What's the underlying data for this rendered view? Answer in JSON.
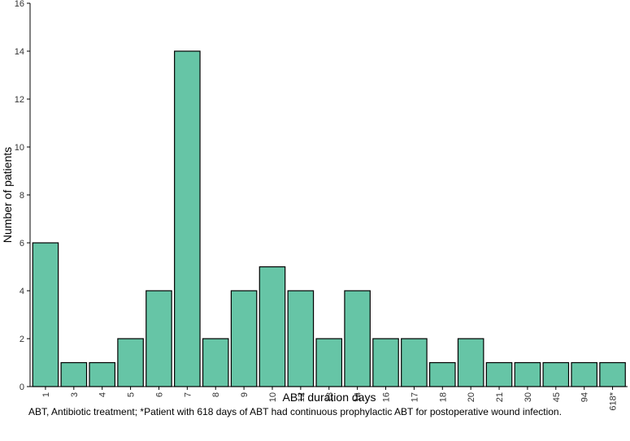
{
  "chart_data": {
    "type": "bar",
    "title": "",
    "xlabel": "ABT duration days",
    "ylabel": "Number of patients",
    "categories": [
      "1",
      "3",
      "4",
      "5",
      "6",
      "7",
      "8",
      "9",
      "10",
      "12",
      "13",
      "14",
      "16",
      "17",
      "18",
      "20",
      "21",
      "30",
      "45",
      "94",
      "618*"
    ],
    "values": [
      6,
      1,
      1,
      2,
      4,
      14,
      2,
      4,
      5,
      4,
      2,
      4,
      2,
      2,
      1,
      2,
      1,
      1,
      1,
      1,
      1
    ],
    "ylim": [
      0,
      16
    ],
    "yticks": [
      0,
      2,
      4,
      6,
      8,
      10,
      12,
      14,
      16
    ],
    "grid": false,
    "legend": "none",
    "bar_color": "#66c5a6",
    "bar_edge_color": "#000000"
  },
  "footnote": "ABT, Antibiotic treatment; *Patient with 618 days of ABT had continuous prophylactic ABT for postoperative wound infection."
}
